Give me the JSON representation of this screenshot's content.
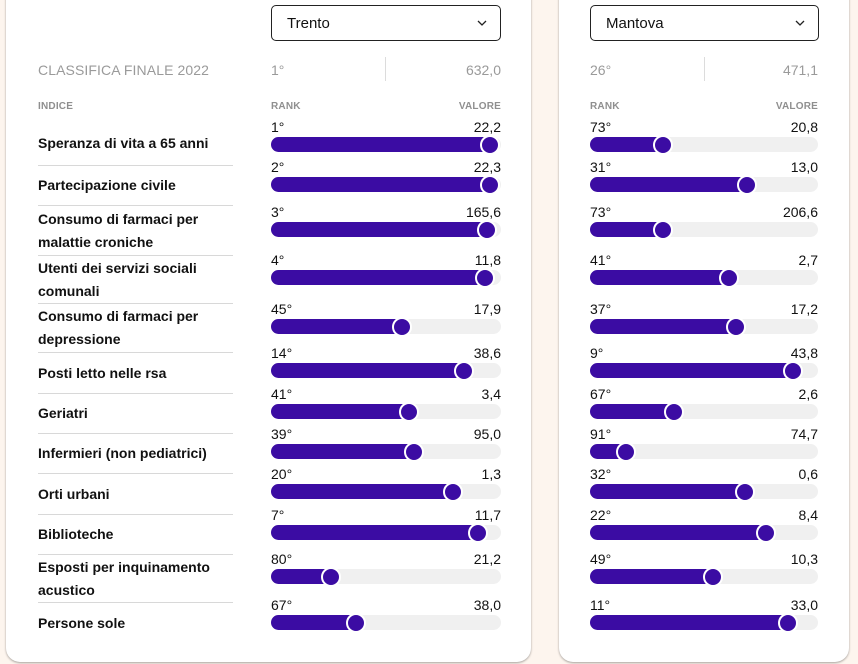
{
  "header": {
    "final_ranking_label": "CLASSIFICA FINALE 2022",
    "col_index": "INDICE",
    "col_rank": "RANK",
    "col_value": "VALORE"
  },
  "indices": [
    "Speranza di vita a 65 anni",
    "Partecipazione civile",
    "Consumo di farmaci per malattie croniche",
    "Utenti dei servizi sociali comunali",
    "Consumo di farmaci per depressione",
    "Posti letto nelle rsa",
    "Geriatri",
    "Infermieri (non pediatrici)",
    "Orti urbani",
    "Biblioteche",
    "Esposti per inquinamento acustico",
    "Persone sole"
  ],
  "colors": {
    "bar_fill": "#3b0ca3",
    "bar_track": "#f0f0f0",
    "page_background": "#fdf5ee"
  },
  "cities": [
    {
      "selected": "Trento",
      "final_rank": "1°",
      "final_value": "632,0",
      "metrics": [
        {
          "rank": "1°",
          "value": "22,2",
          "fill": 0.95
        },
        {
          "rank": "2°",
          "value": "22,3",
          "fill": 0.95
        },
        {
          "rank": "3°",
          "value": "165,6",
          "fill": 0.94
        },
        {
          "rank": "4°",
          "value": "11,8",
          "fill": 0.93
        },
        {
          "rank": "45°",
          "value": "17,9",
          "fill": 0.57
        },
        {
          "rank": "14°",
          "value": "38,6",
          "fill": 0.84
        },
        {
          "rank": "41°",
          "value": "3,4",
          "fill": 0.6
        },
        {
          "rank": "39°",
          "value": "95,0",
          "fill": 0.62
        },
        {
          "rank": "20°",
          "value": "1,3",
          "fill": 0.79
        },
        {
          "rank": "7°",
          "value": "11,7",
          "fill": 0.9
        },
        {
          "rank": "80°",
          "value": "21,2",
          "fill": 0.26
        },
        {
          "rank": "67°",
          "value": "38,0",
          "fill": 0.37
        }
      ]
    },
    {
      "selected": "Mantova",
      "final_rank": "26°",
      "final_value": "471,1",
      "metrics": [
        {
          "rank": "73°",
          "value": "20,8",
          "fill": 0.32
        },
        {
          "rank": "31°",
          "value": "13,0",
          "fill": 0.69
        },
        {
          "rank": "73°",
          "value": "206,6",
          "fill": 0.32
        },
        {
          "rank": "41°",
          "value": "2,7",
          "fill": 0.61
        },
        {
          "rank": "37°",
          "value": "17,2",
          "fill": 0.64
        },
        {
          "rank": "9°",
          "value": "43,8",
          "fill": 0.89
        },
        {
          "rank": "67°",
          "value": "2,6",
          "fill": 0.37
        },
        {
          "rank": "91°",
          "value": "74,7",
          "fill": 0.16
        },
        {
          "rank": "32°",
          "value": "0,6",
          "fill": 0.68
        },
        {
          "rank": "22°",
          "value": "8,4",
          "fill": 0.77
        },
        {
          "rank": "49°",
          "value": "10,3",
          "fill": 0.54
        },
        {
          "rank": "11°",
          "value": "33,0",
          "fill": 0.87
        }
      ]
    }
  ]
}
